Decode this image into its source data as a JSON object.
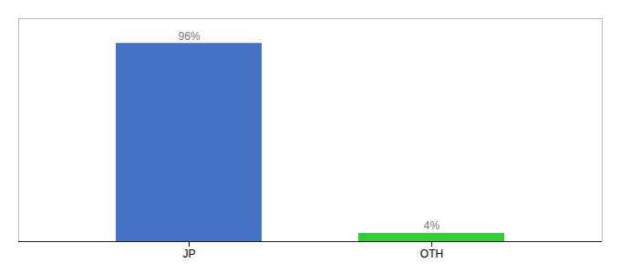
{
  "chart_data": {
    "type": "bar",
    "categories": [
      "JP",
      "OTH"
    ],
    "values": [
      96,
      4
    ],
    "value_labels": [
      "96%",
      "4%"
    ],
    "colors": [
      "#4472c4",
      "#33cc33"
    ],
    "ylim": [
      0,
      108
    ],
    "data_labels": true,
    "tick_labels": "x",
    "grid": false
  }
}
